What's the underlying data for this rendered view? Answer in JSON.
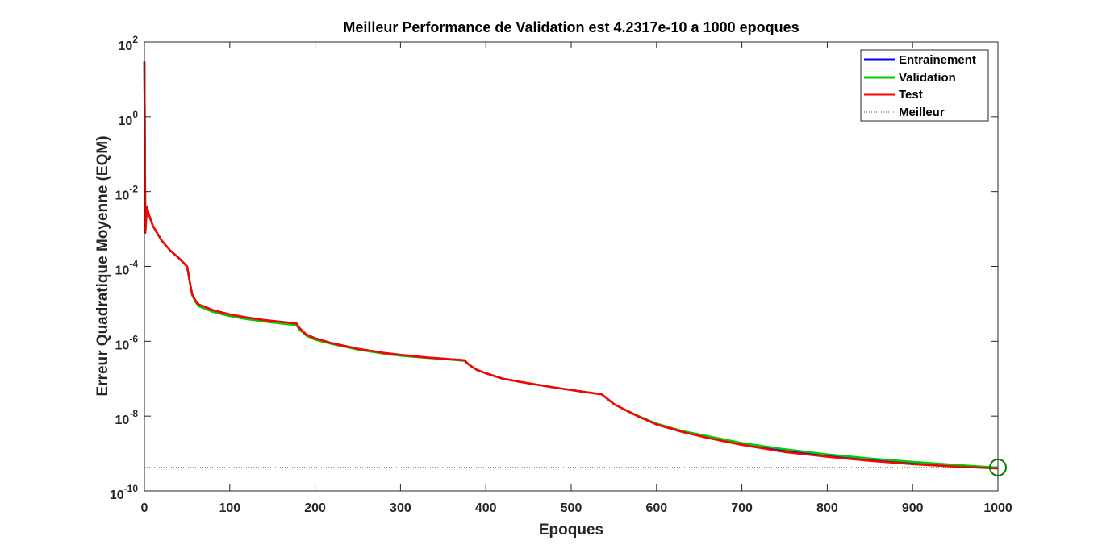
{
  "chart_data": {
    "type": "line",
    "title": "Meilleur Performance de Validation est 4.2317e-10 a 1000 epoques",
    "xlabel": "Epoques",
    "ylabel": "Erreur Quadratique Moyenne  (EQM)",
    "xlim": [
      0,
      1000
    ],
    "ylim": [
      1e-10,
      100
    ],
    "yscale": "log",
    "x_ticks": [
      "0",
      "100",
      "200",
      "300",
      "400",
      "500",
      "600",
      "700",
      "800",
      "900",
      "1000"
    ],
    "y_ticks": [
      {
        "base": "10",
        "exp": "-10"
      },
      {
        "base": "10",
        "exp": "-8"
      },
      {
        "base": "10",
        "exp": "-6"
      },
      {
        "base": "10",
        "exp": "-4"
      },
      {
        "base": "10",
        "exp": "-2"
      },
      {
        "base": "10",
        "exp": "0"
      },
      {
        "base": "10",
        "exp": "2"
      }
    ],
    "grid": false,
    "legend_position": "top-right",
    "series": [
      {
        "name": "Entrainement",
        "color": "#0000ff",
        "x": [
          0,
          1,
          3,
          5,
          10,
          20,
          30,
          40,
          50,
          53,
          56,
          60,
          64,
          70,
          80,
          100,
          120,
          140,
          160,
          178,
          182,
          186,
          190,
          200,
          220,
          250,
          280,
          300,
          330,
          360,
          375,
          380,
          385,
          390,
          400,
          420,
          450,
          480,
          510,
          536,
          540,
          545,
          550,
          560,
          580,
          600,
          630,
          660,
          700,
          750,
          800,
          850,
          900,
          950,
          1000
        ],
        "y": [
          30,
          0.0008,
          0.004,
          0.0025,
          0.0012,
          0.0005,
          0.00027,
          0.00017,
          0.0001,
          4e-05,
          1.8e-05,
          1.2e-05,
          9.5e-06,
          8.5e-06,
          6.8e-06,
          5.2e-06,
          4.3e-06,
          3.7e-06,
          3.3e-06,
          3e-06,
          2.2e-06,
          1.8e-06,
          1.5e-06,
          1.2e-06,
          8.8e-07,
          6.3e-07,
          4.9e-07,
          4.3e-07,
          3.7e-07,
          3.3e-07,
          3.1e-07,
          2.4e-07,
          2e-07,
          1.7e-07,
          1.4e-07,
          1e-07,
          7.5e-08,
          5.8e-08,
          4.6e-08,
          3.8e-08,
          3.2e-08,
          2.6e-08,
          2.1e-08,
          1.6e-08,
          9.5e-09,
          6e-09,
          3.8e-09,
          2.7e-09,
          1.8e-09,
          1.2e-09,
          8.8e-10,
          6.8e-10,
          5.5e-10,
          4.7e-10,
          4.2e-10
        ]
      },
      {
        "name": "Validation",
        "color": "#00cc00",
        "x": [
          0,
          1,
          3,
          5,
          10,
          20,
          30,
          40,
          50,
          53,
          56,
          60,
          64,
          70,
          80,
          100,
          120,
          140,
          160,
          178,
          182,
          186,
          190,
          200,
          220,
          250,
          280,
          300,
          330,
          360,
          375,
          380,
          385,
          390,
          400,
          420,
          450,
          480,
          510,
          536,
          540,
          545,
          550,
          560,
          580,
          600,
          630,
          660,
          700,
          750,
          800,
          850,
          900,
          950,
          1000
        ],
        "y": [
          30,
          0.0008,
          0.004,
          0.0025,
          0.0012,
          0.0005,
          0.00027,
          0.00017,
          0.0001,
          4e-05,
          1.7e-05,
          1.1e-05,
          8.5e-06,
          7.6e-06,
          6.1e-06,
          4.7e-06,
          3.9e-06,
          3.4e-06,
          3e-06,
          2.7e-06,
          2e-06,
          1.7e-06,
          1.4e-06,
          1.1e-06,
          8.4e-07,
          6e-07,
          4.7e-07,
          4.1e-07,
          3.6e-07,
          3.2e-07,
          3e-07,
          2.4e-07,
          2e-07,
          1.7e-07,
          1.4e-07,
          1e-07,
          7.5e-08,
          5.8e-08,
          4.6e-08,
          3.8e-08,
          3.2e-08,
          2.6e-08,
          2.1e-08,
          1.6e-08,
          9.8e-09,
          6.3e-09,
          4e-09,
          2.9e-09,
          1.9e-09,
          1.3e-09,
          9.5e-10,
          7.4e-10,
          6e-10,
          5e-10,
          4.2e-10
        ]
      },
      {
        "name": "Test",
        "color": "#ff0000",
        "x": [
          0,
          1,
          3,
          5,
          10,
          20,
          30,
          40,
          50,
          53,
          56,
          60,
          64,
          70,
          80,
          100,
          120,
          140,
          160,
          178,
          182,
          186,
          190,
          200,
          220,
          250,
          280,
          300,
          330,
          360,
          375,
          380,
          385,
          390,
          400,
          420,
          450,
          480,
          510,
          536,
          540,
          545,
          550,
          560,
          580,
          600,
          630,
          660,
          700,
          750,
          800,
          850,
          900,
          950,
          1000
        ],
        "y": [
          30,
          0.0008,
          0.004,
          0.0025,
          0.0012,
          0.0005,
          0.00027,
          0.00017,
          0.0001,
          4e-05,
          1.8e-05,
          1.2e-05,
          9.5e-06,
          8.5e-06,
          6.8e-06,
          5.2e-06,
          4.3e-06,
          3.7e-06,
          3.3e-06,
          3e-06,
          2.2e-06,
          1.8e-06,
          1.5e-06,
          1.2e-06,
          8.8e-07,
          6.3e-07,
          4.9e-07,
          4.3e-07,
          3.7e-07,
          3.3e-07,
          3.1e-07,
          2.4e-07,
          2e-07,
          1.7e-07,
          1.4e-07,
          1e-07,
          7.5e-08,
          5.8e-08,
          4.6e-08,
          3.8e-08,
          3.2e-08,
          2.6e-08,
          2.1e-08,
          1.6e-08,
          9.5e-09,
          6e-09,
          3.8e-09,
          2.6e-09,
          1.7e-09,
          1.1e-09,
          8.2e-10,
          6.4e-10,
          5.2e-10,
          4.5e-10,
          4e-10
        ]
      }
    ],
    "best": {
      "name": "Meilleur",
      "color": "#008000",
      "epoch": 1000,
      "value": 4.2317e-10
    }
  }
}
